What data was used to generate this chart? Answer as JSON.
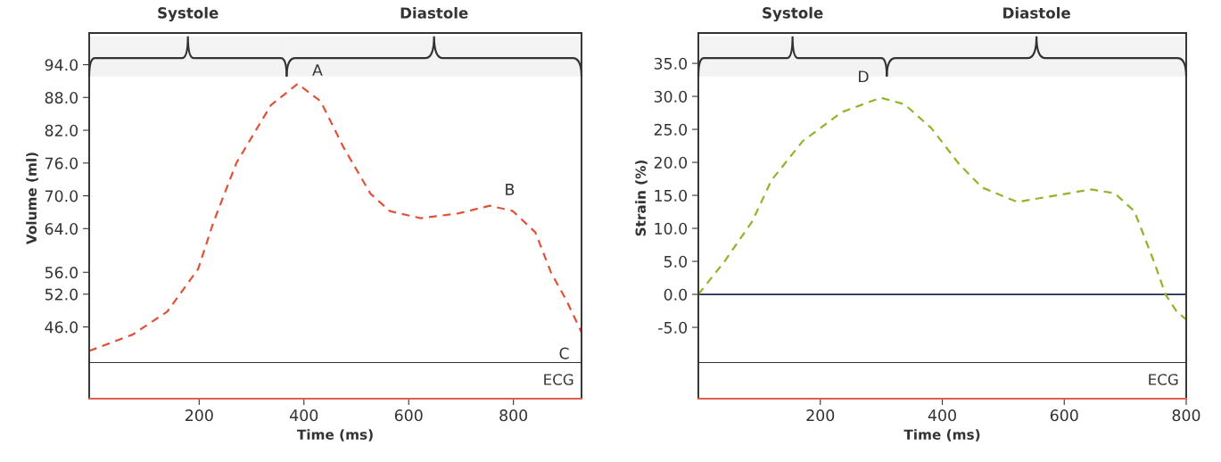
{
  "chart_data": [
    {
      "type": "line",
      "xlabel": "Time (ms)",
      "ylabel": "Volume (ml)",
      "xlim": [
        -10,
        930
      ],
      "xticks": [
        200,
        400,
        600,
        800
      ],
      "ylim": [
        39.4,
        99.8
      ],
      "yticks": [
        {
          "value": 46,
          "label": "46.0"
        },
        {
          "value": 52,
          "label": "52.0"
        },
        {
          "value": 56,
          "label": "56.0"
        },
        {
          "value": 64,
          "label": "64.0"
        },
        {
          "value": 70,
          "label": "70.0"
        },
        {
          "value": 76,
          "label": "76.0"
        },
        {
          "value": 82,
          "label": "82.0"
        },
        {
          "value": 88,
          "label": "88.0"
        },
        {
          "value": 94,
          "label": "94.0"
        }
      ],
      "line_style": "dashed",
      "series": [
        {
          "color": "#e0533a",
          "x": [
            -10,
            73,
            139,
            198,
            227,
            271,
            337,
            388,
            432,
            476,
            527,
            564,
            623,
            696,
            755,
            799,
            842,
            872,
            901,
            930
          ],
          "values": [
            41.6,
            44.6,
            48.8,
            56.6,
            65.1,
            76.0,
            86.6,
            90.5,
            87.3,
            78.8,
            70.4,
            67.2,
            65.9,
            66.8,
            68.2,
            67.2,
            63.3,
            55.9,
            50.9,
            45.0
          ]
        }
      ],
      "bands": [
        {
          "axis": "x",
          "from": -10,
          "to": 367,
          "label": "Systole"
        },
        {
          "axis": "x",
          "from": 367,
          "to": 930,
          "label": "Diastole"
        }
      ],
      "annotations": [
        {
          "text": "A",
          "x": 388,
          "y": 90.5
        },
        {
          "text": "B",
          "x": 755,
          "y": 68.2
        },
        {
          "text": "C",
          "x": 930,
          "y": 45.0
        },
        "ECG"
      ]
    },
    {
      "type": "line",
      "xlabel": "Time (ms)",
      "ylabel": "Strain (%)",
      "xlim": [
        0,
        800
      ],
      "xticks": [
        200,
        400,
        600,
        800
      ],
      "ylim": [
        -10.4,
        39.6
      ],
      "yticks": [
        {
          "value": -5,
          "label": "-5.0"
        },
        {
          "value": 0,
          "label": "0.0"
        },
        {
          "value": 5,
          "label": "5.0"
        },
        {
          "value": 10,
          "label": "10.0"
        },
        {
          "value": 15,
          "label": "15.0"
        },
        {
          "value": 20,
          "label": "20.0"
        },
        {
          "value": 25,
          "label": "25.0"
        },
        {
          "value": 30,
          "label": "30.0"
        },
        {
          "value": 35,
          "label": "35.0"
        }
      ],
      "line_style": "dashed",
      "series": [
        {
          "color": "#8fb52a",
          "x": [
            0,
            43,
            88,
            120,
            171,
            235,
            299,
            338,
            382,
            427,
            465,
            523,
            587,
            644,
            683,
            715,
            747,
            766,
            785,
            800
          ],
          "values": [
            0,
            5.0,
            11.0,
            17.3,
            23.2,
            27.6,
            29.8,
            28.8,
            25.2,
            19.8,
            16.2,
            14.0,
            15.0,
            15.9,
            15.3,
            12.6,
            5.0,
            0,
            -2.7,
            -3.8
          ]
        }
      ],
      "ref_lines": [
        {
          "axis": "y",
          "value": 0,
          "color": "#1f2a5a"
        }
      ],
      "bands": [
        {
          "axis": "x",
          "from": 0,
          "to": 309,
          "label": "Systole"
        },
        {
          "axis": "x",
          "from": 309,
          "to": 800,
          "label": "Diastole"
        }
      ],
      "annotations": [
        {
          "text": "D",
          "x": 299,
          "y": 29.8
        },
        "ECG"
      ]
    }
  ]
}
